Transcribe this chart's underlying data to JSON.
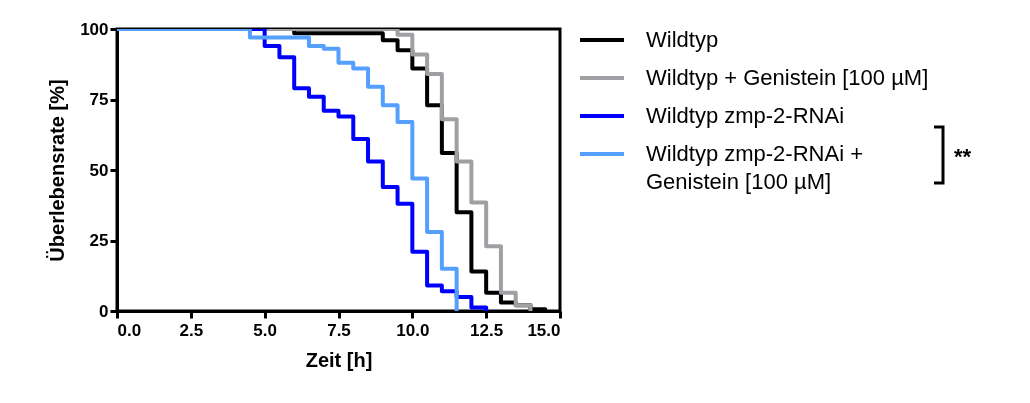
{
  "chart_data": {
    "type": "step",
    "xlabel": "Zeit [h]",
    "ylabel": "Überlebensrate [%]",
    "xlim": [
      0,
      15
    ],
    "ylim": [
      0,
      100
    ],
    "xticks": [
      {
        "value": 0,
        "label": "0.0"
      },
      {
        "value": 2.5,
        "label": "2.5"
      },
      {
        "value": 5,
        "label": "5.0"
      },
      {
        "value": 7.5,
        "label": "7.5"
      },
      {
        "value": 10,
        "label": "10.0"
      },
      {
        "value": 12.5,
        "label": "12.5"
      },
      {
        "value": 15,
        "label": "15.0"
      }
    ],
    "yticks": [
      0,
      25,
      50,
      75,
      100
    ],
    "legend": "right",
    "line_style": "solid",
    "annotations": [
      "**"
    ],
    "series": [
      {
        "name": "Wildtyp",
        "color": "#000000",
        "x": [
          0,
          6,
          9,
          9.5,
          10,
          10.5,
          11,
          11.5,
          12,
          12.5,
          13,
          13.5,
          14,
          14.5
        ],
        "values": [
          100,
          98.5,
          96,
          92.5,
          86,
          73,
          56,
          35,
          14,
          6.5,
          3,
          2,
          0.6,
          0
        ]
      },
      {
        "name": "Wildtyp + Genistein [100 µM]",
        "color": "#a0a0a4",
        "x": [
          0,
          9.5,
          10,
          10.5,
          11,
          11.5,
          12,
          12.5,
          13,
          13.5,
          14
        ],
        "values": [
          100,
          98,
          91,
          84,
          68,
          53,
          38.5,
          23,
          6.5,
          2,
          0
        ]
      },
      {
        "name": "Wildtyp zmp-2-RNAi",
        "color": "#0000ff",
        "x": [
          0,
          5,
          5.5,
          6,
          6.5,
          7,
          7.5,
          8,
          8.5,
          9,
          9.5,
          10,
          10.5,
          11,
          11.5,
          12,
          12.5
        ],
        "values": [
          100,
          94,
          90,
          79,
          76,
          71,
          69,
          61,
          53,
          44,
          38,
          21,
          9,
          7,
          5,
          1.2,
          0
        ]
      },
      {
        "name": "Wildtyp zmp-2-RNAi + Genistein [100 µM]",
        "color": "#55a0ff",
        "x": [
          0,
          4.5,
          6.5,
          7,
          7.5,
          8,
          8.5,
          9,
          9.5,
          10,
          10.5,
          11,
          11.5
        ],
        "values": [
          100,
          97,
          94,
          93,
          88,
          86,
          79.5,
          73,
          67,
          47,
          28,
          15,
          0
        ]
      }
    ]
  }
}
